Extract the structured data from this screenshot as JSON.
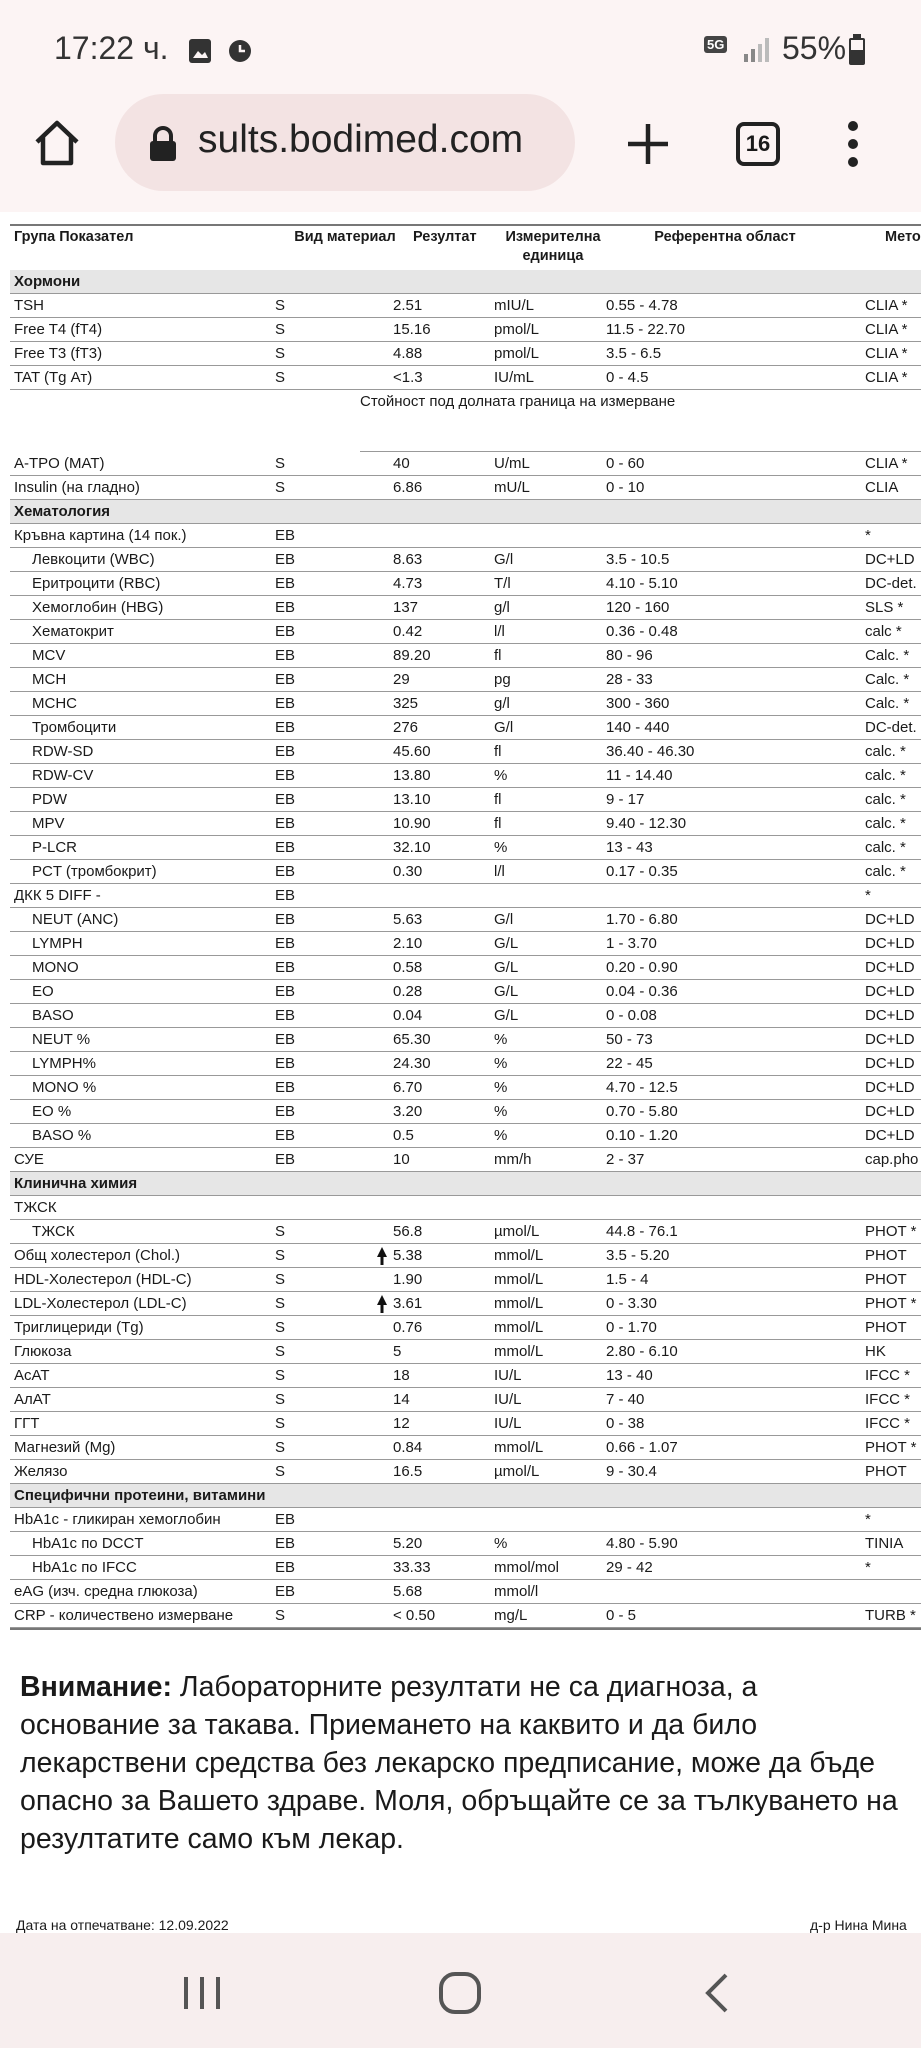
{
  "status_bar": {
    "time": "17:22 ч.",
    "network": "5G",
    "battery": "55%"
  },
  "browser": {
    "url": "sults.bodimed.com",
    "tabs": "16"
  },
  "table": {
    "columns": [
      "Група Показател",
      "Вид материал",
      "Резултат",
      "Измерителна единица",
      "Референтна област",
      "Мето"
    ],
    "sections": [
      {
        "title": "Хормони",
        "rows": [
          {
            "cells": [
              "TSH",
              "S",
              "2.51",
              "mIU/L",
              "0.55 - 4.78",
              "CLIA *"
            ]
          },
          {
            "cells": [
              "Free T4 (fT4)",
              "S",
              "15.16",
              "pmol/L",
              "11.5 - 22.70",
              "CLIA *"
            ]
          },
          {
            "cells": [
              "Free T3 (fT3)",
              "S",
              "4.88",
              "pmol/L",
              "3.5 - 6.5",
              "CLIA *"
            ]
          },
          {
            "cells": [
              "TAT (Tg Ат)",
              "S",
              "<1.3",
              "IU/mL",
              "0 - 4.5",
              "CLIA *"
            ]
          },
          {
            "note": "Стойност под долната граница на измерване"
          },
          {
            "cells": [
              "A-TPO (MAT)",
              "S",
              "40",
              "U/mL",
              "0 - 60",
              "CLIA *"
            ]
          },
          {
            "cells": [
              "Insulin (на гладно)",
              "S",
              "6.86",
              "mU/L",
              "0 - 10",
              "CLIA"
            ]
          }
        ]
      },
      {
        "title": "Хематология",
        "rows": [
          {
            "cells": [
              "Кръвна картина (14 пок.)",
              "EB",
              null,
              null,
              null,
              "*"
            ]
          },
          {
            "indent": true,
            "cells": [
              "Левкоцити (WBC)",
              "EB",
              "8.63",
              "G/l",
              "3.5 - 10.5",
              "DC+LD"
            ]
          },
          {
            "indent": true,
            "cells": [
              "Еритроцити (RBC)",
              "EB",
              "4.73",
              "T/l",
              "4.10 - 5.10",
              "DC-det."
            ]
          },
          {
            "indent": true,
            "cells": [
              "Хемоглобин (HBG)",
              "EB",
              "137",
              "g/l",
              "120 - 160",
              "SLS *"
            ]
          },
          {
            "indent": true,
            "cells": [
              "Хематокрит",
              "EB",
              "0.42",
              "l/l",
              "0.36 - 0.48",
              "calc *"
            ]
          },
          {
            "indent": true,
            "cells": [
              "MCV",
              "EB",
              "89.20",
              "fl",
              "80 - 96",
              "Calc. *"
            ]
          },
          {
            "indent": true,
            "cells": [
              "MCH",
              "EB",
              "29",
              "pg",
              "28 - 33",
              "Calc. *"
            ]
          },
          {
            "indent": true,
            "cells": [
              "MCHC",
              "EB",
              "325",
              "g/l",
              "300 - 360",
              "Calc. *"
            ]
          },
          {
            "indent": true,
            "cells": [
              "Тромбоцити",
              "EB",
              "276",
              "G/l",
              "140 - 440",
              "DC-det."
            ]
          },
          {
            "indent": true,
            "cells": [
              "RDW-SD",
              "EB",
              "45.60",
              "fl",
              "36.40 - 46.30",
              "calc. *"
            ]
          },
          {
            "indent": true,
            "cells": [
              "RDW-CV",
              "EB",
              "13.80",
              "%",
              "11 - 14.40",
              "calc. *"
            ]
          },
          {
            "indent": true,
            "cells": [
              "PDW",
              "EB",
              "13.10",
              "fl",
              "9 - 17",
              "calc. *"
            ]
          },
          {
            "indent": true,
            "cells": [
              "MPV",
              "EB",
              "10.90",
              "fl",
              "9.40 - 12.30",
              "calc. *"
            ]
          },
          {
            "indent": true,
            "cells": [
              "P-LCR",
              "EB",
              "32.10",
              "%",
              "13 - 43",
              "calc. *"
            ]
          },
          {
            "indent": true,
            "cells": [
              "PCT (тромбокрит)",
              "EB",
              "0.30",
              "l/l",
              "0.17 - 0.35",
              "calc. *"
            ]
          },
          {
            "cells": [
              "ДКК 5 DIFF -",
              "EB",
              null,
              null,
              null,
              "*"
            ]
          },
          {
            "indent": true,
            "cells": [
              "NEUT (ANC)",
              "EB",
              "5.63",
              "G/l",
              "1.70 - 6.80",
              "DC+LD"
            ]
          },
          {
            "indent": true,
            "cells": [
              "LYMPH",
              "EB",
              "2.10",
              "G/L",
              "1 - 3.70",
              "DC+LD"
            ]
          },
          {
            "indent": true,
            "cells": [
              "MONO",
              "EB",
              "0.58",
              "G/L",
              "0.20 - 0.90",
              "DC+LD"
            ]
          },
          {
            "indent": true,
            "cells": [
              "EO",
              "EB",
              "0.28",
              "G/L",
              "0.04 - 0.36",
              "DC+LD"
            ]
          },
          {
            "indent": true,
            "cells": [
              "BASO",
              "EB",
              "0.04",
              "G/L",
              "0 - 0.08",
              "DC+LD"
            ]
          },
          {
            "indent": true,
            "cells": [
              "NEUT %",
              "EB",
              "65.30",
              "%",
              "50 - 73",
              "DC+LD"
            ]
          },
          {
            "indent": true,
            "cells": [
              "LYMPH%",
              "EB",
              "24.30",
              "%",
              "22 - 45",
              "DC+LD"
            ]
          },
          {
            "indent": true,
            "cells": [
              "MONO %",
              "EB",
              "6.70",
              "%",
              "4.70 - 12.5",
              "DC+LD"
            ]
          },
          {
            "indent": true,
            "cells": [
              "EO %",
              "EB",
              "3.20",
              "%",
              "0.70 - 5.80",
              "DC+LD"
            ]
          },
          {
            "indent": true,
            "cells": [
              "BASO %",
              "EB",
              "0.5",
              "%",
              "0.10 - 1.20",
              "DC+LD"
            ]
          },
          {
            "cells": [
              "СУЕ",
              "EB",
              "10",
              "mm/h",
              "2 - 37",
              "cap.pho"
            ]
          }
        ]
      },
      {
        "title": "Клинична химия",
        "rows": [
          {
            "cells": [
              "ТЖСК",
              null,
              null,
              null,
              null,
              null
            ]
          },
          {
            "indent": true,
            "cells": [
              "ТЖСК",
              "S",
              "56.8",
              "µmol/L",
              "44.8 - 76.1",
              "PHOT *"
            ]
          },
          {
            "high": true,
            "cells": [
              "Общ холестерол (Chol.)",
              "S",
              "5.38",
              "mmol/L",
              "3.5 - 5.20",
              "PHOT"
            ]
          },
          {
            "cells": [
              "HDL-Холестерол (HDL-C)",
              "S",
              "1.90",
              "mmol/L",
              "1.5 - 4",
              "PHOT"
            ]
          },
          {
            "high": true,
            "cells": [
              "LDL-Холестерол (LDL-C)",
              "S",
              "3.61",
              "mmol/L",
              "0 - 3.30",
              "PHOT *"
            ]
          },
          {
            "cells": [
              "Триглицериди (Tg)",
              "S",
              "0.76",
              "mmol/L",
              "0 - 1.70",
              "PHOT"
            ]
          },
          {
            "cells": [
              "Глюкоза",
              "S",
              "5",
              "mmol/L",
              "2.80 - 6.10",
              "HK"
            ]
          },
          {
            "cells": [
              "АсАТ",
              "S",
              "18",
              "IU/L",
              "13 - 40",
              "IFCC *"
            ]
          },
          {
            "cells": [
              "АлАТ",
              "S",
              "14",
              "IU/L",
              "7 - 40",
              "IFCC *"
            ]
          },
          {
            "cells": [
              "ГГТ",
              "S",
              "12",
              "IU/L",
              "0 - 38",
              "IFCC *"
            ]
          },
          {
            "cells": [
              "Магнезий (Mg)",
              "S",
              "0.84",
              "mmol/L",
              "0.66 - 1.07",
              "PHOT *"
            ]
          },
          {
            "cells": [
              "Желязо",
              "S",
              "16.5",
              "µmol/L",
              "9 - 30.4",
              "PHOT"
            ]
          }
        ]
      },
      {
        "title": "Специфични протеини, витамини",
        "rows": [
          {
            "cells": [
              "HbA1c - гликиран хемоглобин",
              "EB",
              null,
              null,
              null,
              "*"
            ]
          },
          {
            "indent": true,
            "cells": [
              "HbA1c по DCCT",
              "EB",
              "5.20",
              "%",
              "4.80 - 5.90",
              "TINIA"
            ]
          },
          {
            "indent": true,
            "cells": [
              "HbA1c по IFCC",
              "EB",
              "33.33",
              "mmol/mol",
              "29 - 42",
              "*"
            ]
          },
          {
            "cells": [
              "eAG (изч. средна глюкоза)",
              "EB",
              "5.68",
              "mmol/l",
              null,
              null
            ]
          },
          {
            "cells": [
              "CRP - количествено измерване",
              "S",
              "< 0.50",
              "mg/L",
              "0 - 5",
              "TURB *"
            ]
          }
        ]
      }
    ]
  },
  "notice": {
    "label": "Внимание:",
    "text": "Лабораторните резултати не са диагноза, а основание за такава. Приемането на каквито и да било лекарствени средства без лекарско предписание, може да бъде опасно за Вашето здраве. Моля, обръщайте се за тълкуването на резултатите само към лекар."
  },
  "footer": {
    "printed": "Дата на отпечатване: 12.09.2022",
    "doctor": "д-р Нина Мина"
  }
}
